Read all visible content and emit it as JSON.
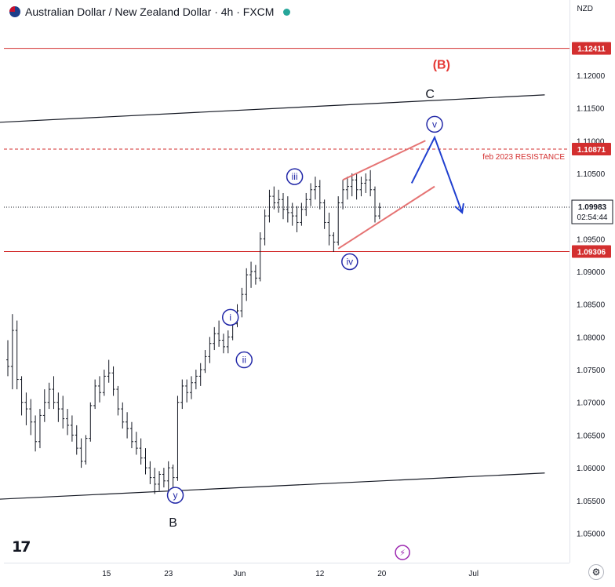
{
  "header": {
    "title": "Australian Dollar / New Zealand Dollar · 4h · FXCM"
  },
  "currency_label": "NZD",
  "settings_icon": "gear-icon",
  "logo_text": "17",
  "colors": {
    "candle": "#131722",
    "red_line": "#d32f2f",
    "label_red": "#e53935",
    "wave_blue": "#2329a8",
    "arrow_blue": "#1f3fcf",
    "channel": "#131722",
    "current": "#131722"
  },
  "chart_data": {
    "type": "candlestick",
    "title": "Australian Dollar / New Zealand Dollar · 4h · FXCM",
    "ylim": [
      1.0455,
      1.1315
    ],
    "y_ticks": [
      "1.05000",
      "1.05500",
      "1.06000",
      "1.06500",
      "1.07000",
      "1.07500",
      "1.08000",
      "1.08500",
      "1.09000",
      "1.09500",
      "1.10000",
      "1.10500",
      "1.11000",
      "1.11500",
      "1.12000"
    ],
    "x_ticks": [
      {
        "label": "15",
        "bar": 21.5
      },
      {
        "label": "23",
        "bar": 35.0
      },
      {
        "label": "Jun",
        "bar": 50.5
      },
      {
        "label": "12",
        "bar": 68.0
      },
      {
        "label": "20",
        "bar": 81.5
      },
      {
        "label": "Jul",
        "bar": 101.5
      }
    ],
    "x_range": [
      0,
      117
    ],
    "candles": [
      [
        1.0765,
        1.0795,
        1.074,
        1.0755
      ],
      [
        1.0755,
        1.0835,
        1.072,
        1.081
      ],
      [
        1.081,
        1.0825,
        1.072,
        1.0735
      ],
      [
        1.0735,
        1.074,
        1.068,
        1.07
      ],
      [
        1.07,
        1.0715,
        1.0665,
        1.069
      ],
      [
        1.069,
        1.0705,
        1.065,
        1.067
      ],
      [
        1.067,
        1.068,
        1.0625,
        1.064
      ],
      [
        1.064,
        1.069,
        1.063,
        1.068
      ],
      [
        1.068,
        1.072,
        1.067,
        1.07
      ],
      [
        1.07,
        1.073,
        1.069,
        1.072
      ],
      [
        1.072,
        1.074,
        1.069,
        1.07
      ],
      [
        1.07,
        1.0715,
        1.067,
        1.069
      ],
      [
        1.069,
        1.071,
        1.066,
        1.0675
      ],
      [
        1.0675,
        1.069,
        1.065,
        1.0665
      ],
      [
        1.0665,
        1.068,
        1.064,
        1.065
      ],
      [
        1.065,
        1.0665,
        1.062,
        1.063
      ],
      [
        1.063,
        1.0645,
        1.06,
        1.061
      ],
      [
        1.061,
        1.065,
        1.0605,
        1.0645
      ],
      [
        1.0645,
        1.07,
        1.064,
        1.0695
      ],
      [
        1.0695,
        1.0735,
        1.069,
        1.0725
      ],
      [
        1.0725,
        1.074,
        1.07,
        1.0715
      ],
      [
        1.0715,
        1.075,
        1.071,
        1.074
      ],
      [
        1.074,
        1.0765,
        1.073,
        1.0745
      ],
      [
        1.0745,
        1.0755,
        1.071,
        1.072
      ],
      [
        1.072,
        1.0725,
        1.068,
        1.069
      ],
      [
        1.069,
        1.07,
        1.066,
        1.067
      ],
      [
        1.067,
        1.0685,
        1.0645,
        1.066
      ],
      [
        1.066,
        1.067,
        1.063,
        1.064
      ],
      [
        1.064,
        1.0655,
        1.062,
        1.063
      ],
      [
        1.063,
        1.0645,
        1.0605,
        1.0615
      ],
      [
        1.0615,
        1.063,
        1.059,
        1.06
      ],
      [
        1.06,
        1.061,
        1.0575,
        1.0585
      ],
      [
        1.0585,
        1.06,
        1.056,
        1.0575
      ],
      [
        1.0575,
        1.0595,
        1.0565,
        1.059
      ],
      [
        1.059,
        1.06,
        1.057,
        1.058
      ],
      [
        1.058,
        1.061,
        1.0565,
        1.06
      ],
      [
        1.06,
        1.0605,
        1.057,
        1.0585
      ],
      [
        1.0585,
        1.071,
        1.058,
        1.07
      ],
      [
        1.07,
        1.0735,
        1.069,
        1.0725
      ],
      [
        1.0725,
        1.0735,
        1.07,
        1.0715
      ],
      [
        1.0715,
        1.074,
        1.0705,
        1.073
      ],
      [
        1.073,
        1.075,
        1.072,
        1.074
      ],
      [
        1.074,
        1.076,
        1.0725,
        1.075
      ],
      [
        1.075,
        1.078,
        1.0745,
        1.077
      ],
      [
        1.077,
        1.08,
        1.076,
        1.079
      ],
      [
        1.079,
        1.0815,
        1.078,
        1.0805
      ],
      [
        1.0805,
        1.0825,
        1.0785,
        1.0795
      ],
      [
        1.0795,
        1.0805,
        1.0775,
        1.0785
      ],
      [
        1.0785,
        1.081,
        1.0775,
        1.08
      ],
      [
        1.08,
        1.083,
        1.0795,
        1.082
      ],
      [
        1.082,
        1.085,
        1.0815,
        1.084
      ],
      [
        1.084,
        1.0875,
        1.083,
        1.0865
      ],
      [
        1.0865,
        1.0905,
        1.0855,
        1.0895
      ],
      [
        1.0895,
        1.0915,
        1.0875,
        1.09
      ],
      [
        1.09,
        1.091,
        1.088,
        1.089
      ],
      [
        1.089,
        1.096,
        1.0885,
        1.095
      ],
      [
        1.095,
        1.0995,
        1.094,
        1.0985
      ],
      [
        1.0985,
        1.1025,
        1.0975,
        1.1015
      ],
      [
        1.1015,
        1.103,
        1.0995,
        1.1005
      ],
      [
        1.1005,
        1.1025,
        1.099,
        1.101
      ],
      [
        1.101,
        1.102,
        1.098,
        1.0995
      ],
      [
        1.0995,
        1.1015,
        1.0975,
        1.099
      ],
      [
        1.099,
        1.1005,
        1.097,
        1.0985
      ],
      [
        1.0985,
        1.1,
        1.096,
        1.0975
      ],
      [
        1.0975,
        1.1005,
        1.097,
        1.0995
      ],
      [
        1.0995,
        1.102,
        1.0985,
        1.101
      ],
      [
        1.101,
        1.1035,
        1.1,
        1.1025
      ],
      [
        1.1025,
        1.1045,
        1.101,
        1.103
      ],
      [
        1.103,
        1.104,
        1.0995,
        1.1005
      ],
      [
        1.1005,
        1.101,
        1.0965,
        1.0975
      ],
      [
        1.0975,
        1.099,
        1.094,
        1.0955
      ],
      [
        1.0955,
        1.096,
        1.093,
        1.0945
      ],
      [
        1.0945,
        1.1015,
        1.094,
        1.1005
      ],
      [
        1.1005,
        1.104,
        1.0995,
        1.1025
      ],
      [
        1.1025,
        1.1045,
        1.101,
        1.103
      ],
      [
        1.103,
        1.105,
        1.1015,
        1.104
      ],
      [
        1.104,
        1.105,
        1.101,
        1.1025
      ],
      [
        1.1025,
        1.1045,
        1.1015,
        1.1035
      ],
      [
        1.1035,
        1.105,
        1.102,
        1.104
      ],
      [
        1.104,
        1.1055,
        1.1015,
        1.1025
      ],
      [
        1.1025,
        1.103,
        1.0975,
        1.0985
      ],
      [
        1.0985,
        1.1005,
        1.098,
        1.0998
      ]
    ],
    "overlays": {
      "hlines": [
        {
          "name": "level-1.12411",
          "value": 1.12411,
          "style": "solid",
          "label": "1.12411"
        },
        {
          "name": "level-1.10871",
          "value": 1.10871,
          "style": "dashed",
          "label": "1.10871"
        },
        {
          "name": "level-1.09306",
          "value": 1.09306,
          "style": "solid",
          "label": "1.09306"
        }
      ],
      "current_price": {
        "value": 1.09983,
        "label": "1.09983",
        "countdown": "02:54:44"
      },
      "channel_upper": [
        [
          -2,
          1.1128
        ],
        [
          117,
          1.117
        ]
      ],
      "channel_lower": [
        [
          -2,
          1.0552
        ],
        [
          117,
          1.0592
        ]
      ],
      "wedge_upper": [
        [
          73,
          1.104
        ],
        [
          91,
          1.11
        ]
      ],
      "wedge_lower": [
        [
          72,
          1.0935
        ],
        [
          93,
          1.103
        ]
      ],
      "projection": [
        [
          88,
          1.1035
        ],
        [
          93,
          1.1105
        ],
        [
          99,
          1.099
        ]
      ],
      "resistance_label": "feb 2023 RESISTANCE",
      "wave_labels": [
        {
          "text": "(B)",
          "bar": 94.5,
          "price": 1.121,
          "style": "red"
        },
        {
          "text": "C",
          "bar": 92.0,
          "price": 1.1165,
          "style": "black"
        },
        {
          "text": "v",
          "bar": 93.0,
          "price": 1.1125,
          "style": "circle"
        },
        {
          "text": "iii",
          "bar": 62.5,
          "price": 1.1045,
          "style": "circle"
        },
        {
          "text": "iv",
          "bar": 74.5,
          "price": 1.0915,
          "style": "circle"
        },
        {
          "text": "i",
          "bar": 48.5,
          "price": 1.083,
          "style": "circle"
        },
        {
          "text": "ii",
          "bar": 51.5,
          "price": 1.0765,
          "style": "circle"
        },
        {
          "text": "y",
          "bar": 36.5,
          "price": 1.0558,
          "style": "circle"
        },
        {
          "text": "B",
          "bar": 36.0,
          "price": 1.051,
          "style": "black"
        }
      ]
    }
  }
}
